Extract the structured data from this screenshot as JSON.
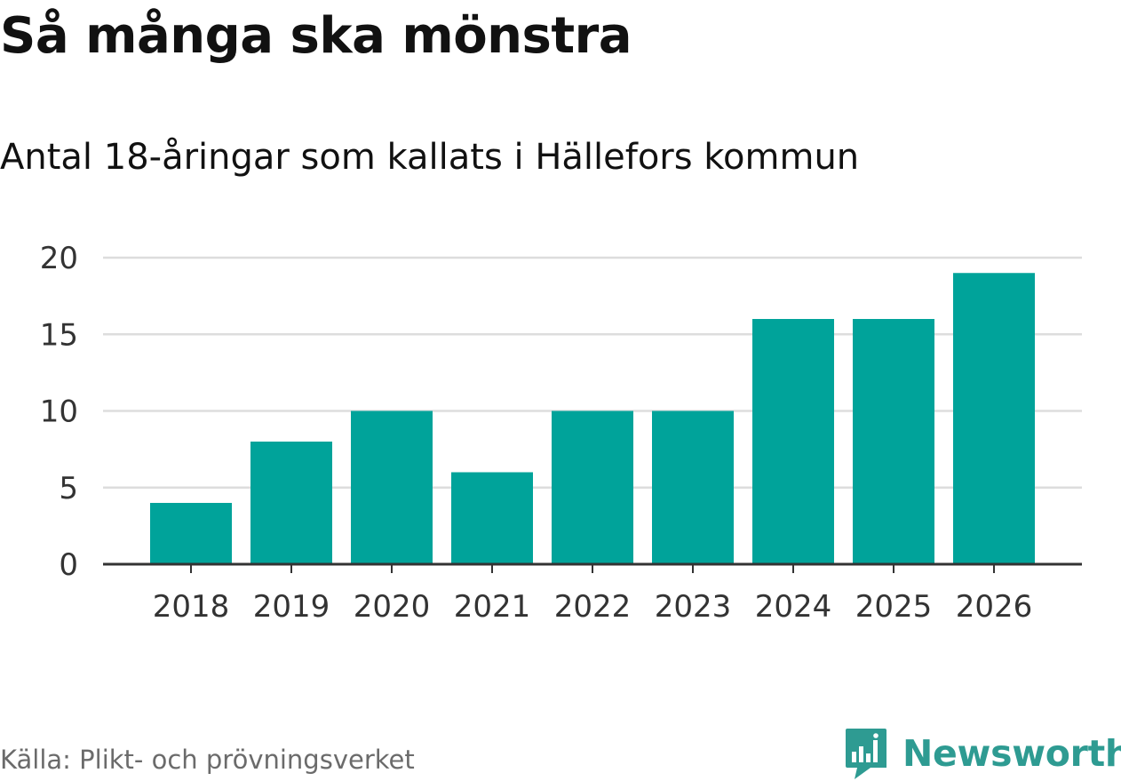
{
  "title": "Så många ska mönstra",
  "subtitle": "Antal 18-åringar som kallats i Hällefors kommun",
  "source": "Källa: Plikt- och prövningsverket",
  "brand": {
    "name": "Newsworthy",
    "logo_icon": "newsworthy-logo-icon"
  },
  "colors": {
    "bar": "#00a39a",
    "grid": "#dddddd",
    "axis": "#333333",
    "brand": "#2e9b92"
  },
  "chart_data": {
    "type": "bar",
    "title": "Så många ska mönstra",
    "subtitle": "Antal 18-åringar som kallats i Hällefors kommun",
    "xlabel": "",
    "ylabel": "",
    "categories": [
      "2018",
      "2019",
      "2020",
      "2021",
      "2022",
      "2023",
      "2024",
      "2025",
      "2026"
    ],
    "values": [
      4,
      8,
      10,
      6,
      10,
      10,
      16,
      16,
      19
    ],
    "ylim": [
      0,
      20
    ],
    "yticks": [
      0,
      5,
      10,
      15,
      20
    ],
    "grid": true,
    "legend": "none"
  }
}
